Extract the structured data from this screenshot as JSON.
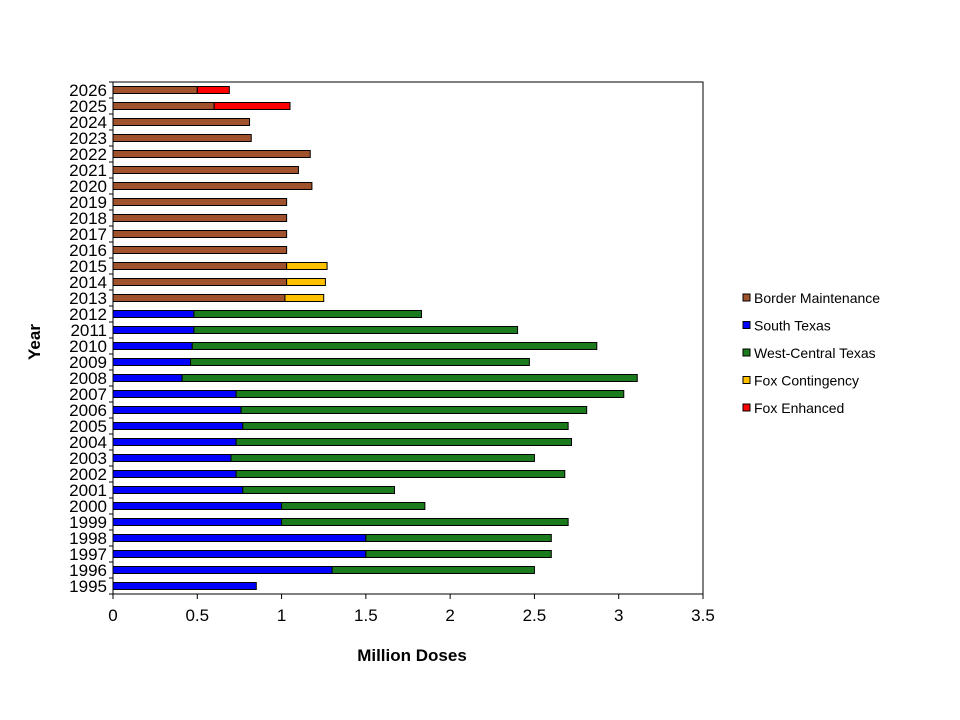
{
  "chart_data": {
    "type": "bar",
    "orientation": "horizontal",
    "stacked": true,
    "xlabel": "Million Doses",
    "ylabel": "Year",
    "xlim": [
      0,
      3.5
    ],
    "xticks": [
      "0",
      "0.5",
      "1",
      "1.5",
      "2",
      "2.5",
      "3",
      "3.5"
    ],
    "grid": false,
    "legend_position": "right",
    "categories": [
      "1995",
      "1996",
      "1997",
      "1998",
      "1999",
      "2000",
      "2001",
      "2002",
      "2003",
      "2004",
      "2005",
      "2006",
      "2007",
      "2008",
      "2009",
      "2010",
      "2011",
      "2012",
      "2013",
      "2014",
      "2015",
      "2016",
      "2017",
      "2018",
      "2019",
      "2020",
      "2021",
      "2022",
      "2023",
      "2024",
      "2025",
      "2026"
    ],
    "series": [
      {
        "name": "Border Maintenance",
        "color": "#a0522d",
        "values": [
          0,
          0,
          0,
          0,
          0,
          0,
          0,
          0,
          0,
          0,
          0,
          0,
          0,
          0,
          0,
          0,
          0,
          0,
          1.02,
          1.03,
          1.03,
          1.03,
          1.03,
          1.03,
          1.03,
          1.18,
          1.1,
          1.17,
          0.82,
          0.81,
          0.6,
          0.5
        ]
      },
      {
        "name": "South Texas",
        "color": "#0000ff",
        "values": [
          0.85,
          1.3,
          1.5,
          1.5,
          1.0,
          1.0,
          0.77,
          0.73,
          0.7,
          0.73,
          0.77,
          0.76,
          0.73,
          0.41,
          0.46,
          0.47,
          0.48,
          0.48,
          0,
          0,
          0,
          0,
          0,
          0,
          0,
          0,
          0,
          0,
          0,
          0,
          0,
          0
        ]
      },
      {
        "name": "West-Central Texas",
        "color": "#1b7a1b",
        "values": [
          0,
          1.2,
          1.1,
          1.1,
          1.7,
          0.85,
          0.9,
          1.95,
          1.8,
          1.99,
          1.93,
          2.05,
          2.3,
          2.7,
          2.01,
          2.4,
          1.92,
          1.35,
          0,
          0,
          0,
          0,
          0,
          0,
          0,
          0,
          0,
          0,
          0,
          0,
          0,
          0
        ]
      },
      {
        "name": "Fox Contingency",
        "color": "#ffc000",
        "values": [
          0,
          0,
          0,
          0,
          0,
          0,
          0,
          0,
          0,
          0,
          0,
          0,
          0,
          0,
          0,
          0,
          0,
          0,
          0.23,
          0.23,
          0.24,
          0,
          0,
          0,
          0,
          0,
          0,
          0,
          0,
          0,
          0,
          0
        ]
      },
      {
        "name": "Fox Enhanced",
        "color": "#ff0000",
        "values": [
          0,
          0,
          0,
          0,
          0,
          0,
          0,
          0,
          0,
          0,
          0,
          0,
          0,
          0,
          0,
          0,
          0,
          0,
          0,
          0,
          0,
          0,
          0,
          0,
          0,
          0,
          0,
          0,
          0,
          0,
          0.45,
          0.19
        ]
      }
    ]
  }
}
